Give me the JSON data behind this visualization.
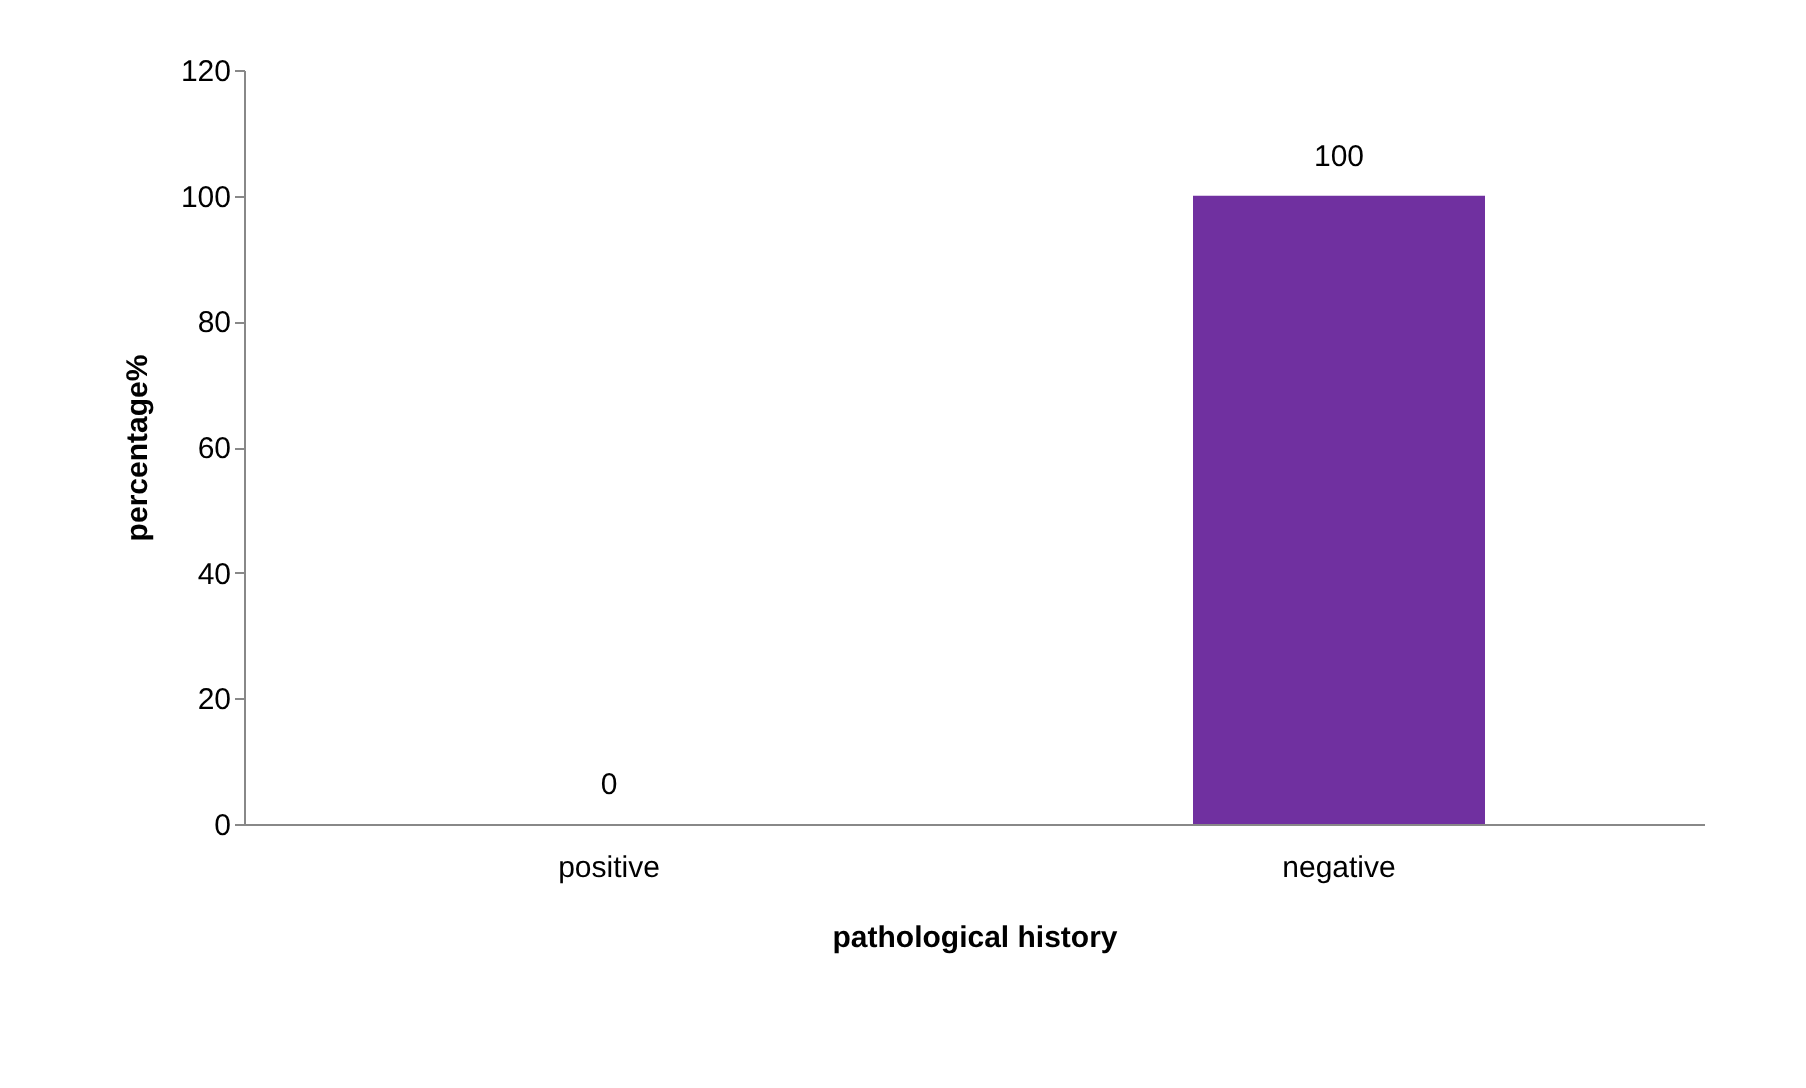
{
  "chart_data": {
    "type": "bar",
    "xlabel": "pathological history",
    "ylabel": "percentage%",
    "categories": [
      "positive",
      "negative"
    ],
    "values": [
      0,
      100
    ],
    "color": "#7030a0",
    "ylim": [
      0,
      120
    ],
    "yticks": [
      0,
      20,
      40,
      60,
      80,
      100,
      120
    ],
    "grid": false,
    "data_labels": true
  }
}
